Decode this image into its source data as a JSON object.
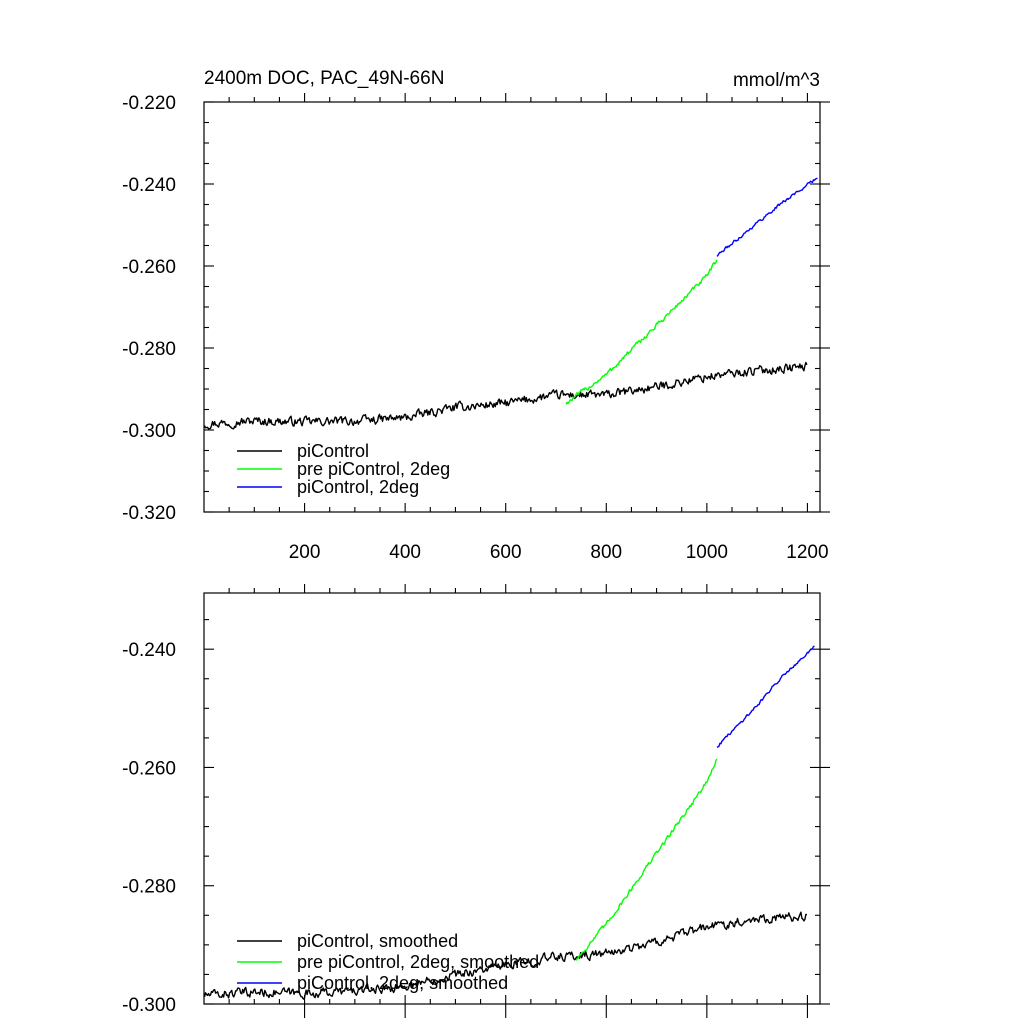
{
  "colors": {
    "piControl": "#000000",
    "pre_piControl_2deg": "#00ff00",
    "piControl_2deg": "#0000ff"
  },
  "chart_data": [
    {
      "type": "line",
      "title": "2400m DOC, PAC_49N-66N",
      "units": "mmol/m^3",
      "xlim": [
        0,
        1225
      ],
      "ylim": [
        -0.32,
        -0.22
      ],
      "x_ticks": [
        200,
        400,
        600,
        800,
        1000,
        1200
      ],
      "x_tick_labels": [
        "200",
        "400",
        "600",
        "800",
        "1000",
        "1200"
      ],
      "y_ticks": [
        -0.32,
        -0.3,
        -0.28,
        -0.26,
        -0.24,
        -0.22
      ],
      "y_tick_labels": [
        "-0.320",
        "-0.300",
        "-0.280",
        "-0.260",
        "-0.240",
        "-0.220"
      ],
      "legend_position": "bottom-left",
      "series": [
        {
          "name": "piControl",
          "color_key": "piControl",
          "noise": 0.0017,
          "x": [
            1,
            100,
            200,
            300,
            400,
            500,
            600,
            700,
            800,
            900,
            1000,
            1100,
            1200
          ],
          "y": [
            -0.2985,
            -0.2978,
            -0.298,
            -0.2978,
            -0.297,
            -0.2945,
            -0.2935,
            -0.2915,
            -0.2915,
            -0.2895,
            -0.287,
            -0.2855,
            -0.2845
          ]
        },
        {
          "name": "pre piControl, 2deg",
          "color_key": "pre_piControl_2deg",
          "noise": 0.0009,
          "x": [
            720,
            800,
            900,
            1000,
            1020
          ],
          "y": [
            -0.2935,
            -0.2865,
            -0.2745,
            -0.2625,
            -0.2585
          ]
        },
        {
          "name": "piControl, 2deg",
          "color_key": "piControl_2deg",
          "noise": 0.0006,
          "x": [
            1020,
            1100,
            1150,
            1220
          ],
          "y": [
            -0.2575,
            -0.2495,
            -0.2445,
            -0.2385
          ]
        }
      ]
    },
    {
      "type": "line",
      "xlim": [
        0,
        1225
      ],
      "ylim": [
        -0.3,
        -0.2305
      ],
      "x_ticks": [
        200,
        400,
        600,
        800,
        1000,
        1200
      ],
      "y_ticks": [
        -0.3,
        -0.28,
        -0.26,
        -0.24
      ],
      "y_tick_labels": [
        "-0.300",
        "-0.280",
        "-0.260",
        "-0.240"
      ],
      "legend_position": "bottom-left",
      "series": [
        {
          "name": "piControl, smoothed",
          "color_key": "piControl",
          "noise": 0.0012,
          "x": [
            1,
            100,
            200,
            300,
            400,
            500,
            600,
            700,
            800,
            900,
            1000,
            1100,
            1200
          ],
          "y": [
            -0.2985,
            -0.298,
            -0.2982,
            -0.2978,
            -0.297,
            -0.295,
            -0.2935,
            -0.292,
            -0.2915,
            -0.2895,
            -0.287,
            -0.2855,
            -0.2852
          ]
        },
        {
          "name": "pre piControl, 2deg, smoothed",
          "color_key": "pre_piControl_2deg",
          "noise": 0.0006,
          "x": [
            740,
            800,
            900,
            1000,
            1020
          ],
          "y": [
            -0.2925,
            -0.2865,
            -0.2745,
            -0.2625,
            -0.2585
          ]
        },
        {
          "name": "piControl, 2deg, smoothed",
          "color_key": "piControl_2deg",
          "noise": 0.0004,
          "x": [
            1020,
            1100,
            1150,
            1215
          ],
          "y": [
            -0.2565,
            -0.2495,
            -0.2445,
            -0.2395
          ]
        }
      ]
    }
  ]
}
